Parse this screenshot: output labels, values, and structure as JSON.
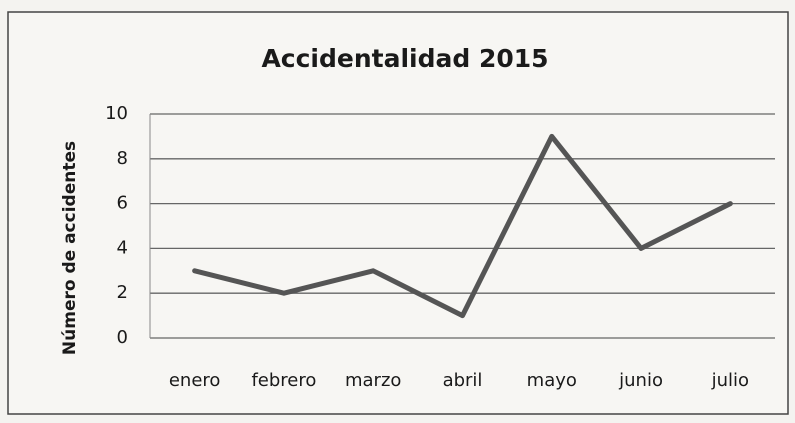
{
  "chart_data": {
    "type": "line",
    "title": "Accidentalidad 2015",
    "y_label": "Número de accidentes",
    "categories": [
      "enero",
      "febrero",
      "marzo",
      "abril",
      "mayo",
      "junio",
      "julio"
    ],
    "values": [
      3,
      2,
      3,
      1,
      9,
      4,
      6
    ],
    "color": "#555555",
    "ylim": [
      0,
      10
    ],
    "yticks": [
      0,
      2,
      4,
      6,
      8,
      10
    ],
    "grid": true
  }
}
